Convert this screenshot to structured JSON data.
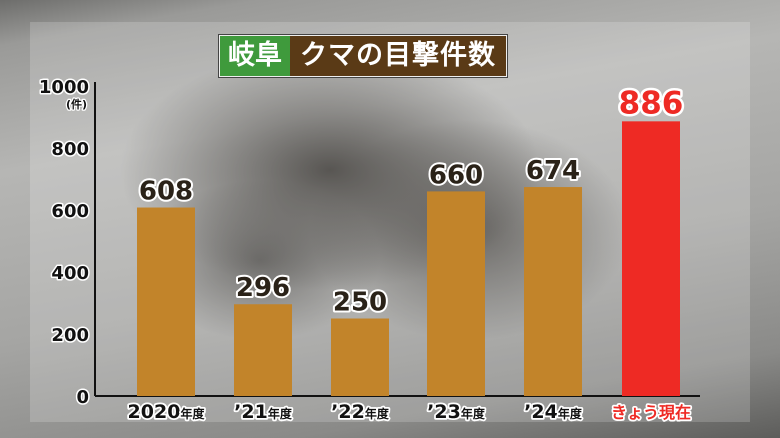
{
  "chart_data": {
    "type": "bar",
    "title_prefix": "岐阜",
    "title": "クマの目撃件数",
    "ylabel": "(件)",
    "ylim": [
      0,
      1000
    ],
    "yticks": [
      0,
      200,
      400,
      600,
      800,
      1000
    ],
    "grid": false,
    "categories": [
      {
        "main": "2020",
        "suffix": "年度"
      },
      {
        "main": "’21",
        "suffix": "年度"
      },
      {
        "main": "’22",
        "suffix": "年度"
      },
      {
        "main": "’23",
        "suffix": "年度"
      },
      {
        "main": "’24",
        "suffix": "年度"
      },
      {
        "main": "きょう現在",
        "suffix": ""
      }
    ],
    "values": [
      608,
      296,
      250,
      660,
      674,
      886
    ],
    "colors": {
      "bar": "#c2842a",
      "highlight": "#ee2a24",
      "title_prefix_bg": "#3f9a3c",
      "title_bg": "#5a3a16"
    },
    "highlight_index": 5
  }
}
